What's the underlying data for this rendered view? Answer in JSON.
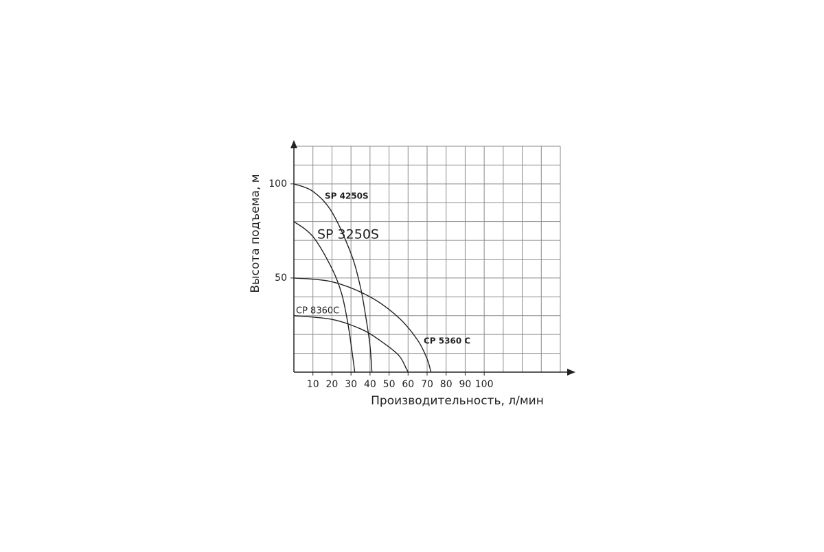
{
  "chart_data": {
    "type": "line",
    "xlabel": "Производительность, л/мин",
    "ylabel": "Высота подъема, м",
    "xlim": [
      0,
      140
    ],
    "ylim": [
      0,
      120
    ],
    "xticks": [
      10,
      20,
      30,
      40,
      50,
      60,
      70,
      80,
      90,
      100
    ],
    "yticks": [
      50,
      100
    ],
    "xgrid": [
      10,
      20,
      30,
      40,
      50,
      60,
      70,
      80,
      90,
      100,
      110,
      120,
      130,
      140
    ],
    "ygrid": [
      10,
      20,
      30,
      40,
      50,
      60,
      70,
      80,
      90,
      100,
      110,
      120
    ],
    "grid": true,
    "series": [
      {
        "name": "SP 4250S",
        "color": "#222222",
        "x": [
          0,
          10,
          20,
          30,
          35,
          38,
          40,
          41
        ],
        "values": [
          100,
          96,
          85,
          63,
          45,
          28,
          14,
          0
        ]
      },
      {
        "name": "SP 3250S",
        "color": "#222222",
        "x": [
          0,
          10,
          20,
          25,
          28,
          30,
          32
        ],
        "values": [
          80,
          72,
          55,
          42,
          28,
          15,
          0
        ]
      },
      {
        "name": "CP 5360 C",
        "color": "#222222",
        "x": [
          0,
          20,
          40,
          55,
          65,
          70,
          72
        ],
        "values": [
          50,
          48,
          40,
          29,
          17,
          7,
          0
        ]
      },
      {
        "name": "CP 8360C",
        "color": "#222222",
        "x": [
          0,
          20,
          35,
          45,
          55,
          59,
          60
        ],
        "values": [
          30,
          28,
          23,
          17,
          9,
          2,
          0
        ]
      }
    ]
  }
}
